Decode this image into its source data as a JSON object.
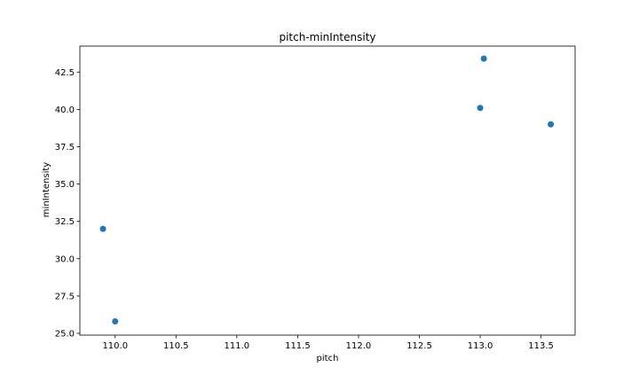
{
  "chart_data": {
    "type": "scatter",
    "title": "pitch-minIntensity",
    "xlabel": "pitch",
    "ylabel": "minIntensity",
    "xlim": [
      109.71,
      113.78
    ],
    "ylim": [
      24.88,
      44.24
    ],
    "xticks": [
      110.0,
      110.5,
      111.0,
      111.5,
      112.0,
      112.5,
      113.0,
      113.5
    ],
    "xtick_labels": [
      "110.0",
      "110.5",
      "111.0",
      "111.5",
      "112.0",
      "112.5",
      "113.0",
      "113.5"
    ],
    "yticks": [
      25.0,
      27.5,
      30.0,
      32.5,
      35.0,
      37.5,
      40.0,
      42.5
    ],
    "ytick_labels": [
      "25.0",
      "27.5",
      "30.0",
      "32.5",
      "35.0",
      "37.5",
      "40.0",
      "42.5"
    ],
    "grid": false,
    "marker_color": "#1f77b4",
    "series": [
      {
        "points": [
          {
            "x": 109.9,
            "y": 32.0
          },
          {
            "x": 110.0,
            "y": 25.8
          },
          {
            "x": 113.0,
            "y": 40.1
          },
          {
            "x": 113.03,
            "y": 43.4
          },
          {
            "x": 113.58,
            "y": 39.0
          }
        ]
      }
    ]
  }
}
